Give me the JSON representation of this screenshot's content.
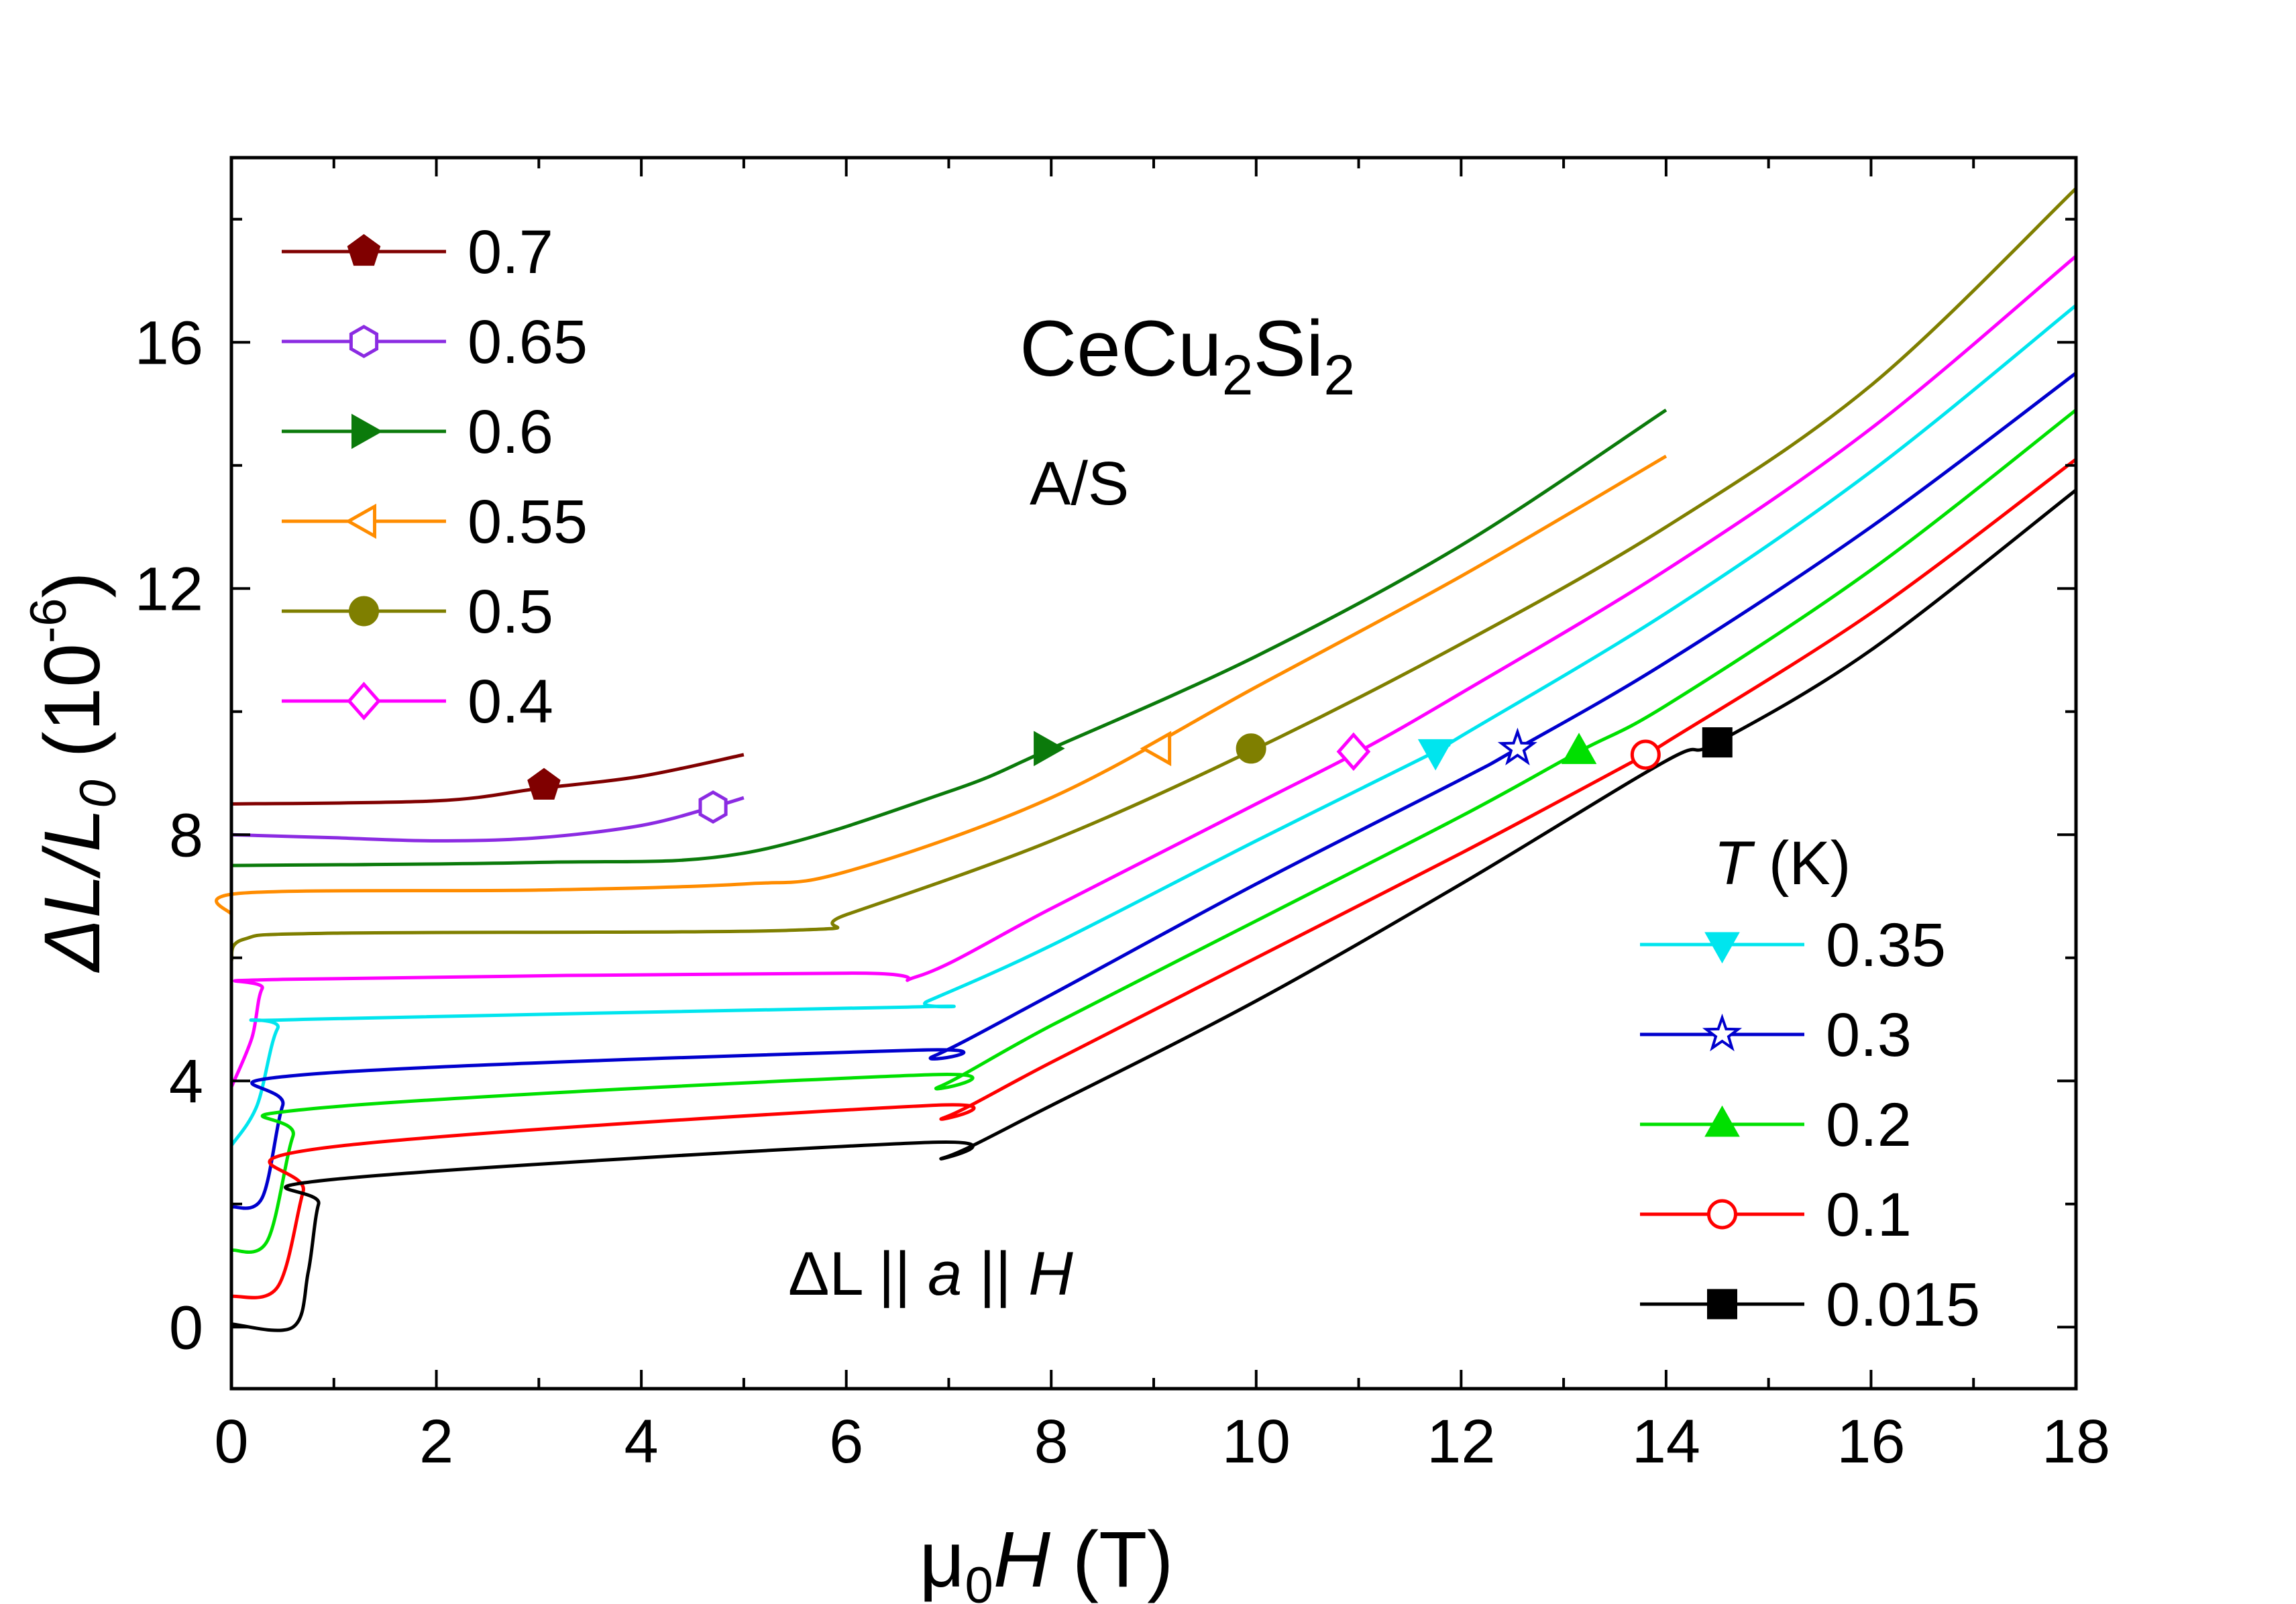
{
  "chart_data": {
    "type": "line",
    "title": "CeCu2Si2",
    "annotations": {
      "compound": {
        "base": "CeCu",
        "sub1": "2",
        "mid": "Si",
        "sub2": "2"
      },
      "sample": "A/S",
      "geometry": {
        "p1": "ΔL",
        "p2": " || ",
        "p3": "a",
        "p4": " || ",
        "p5": "H"
      }
    },
    "xlabel": {
      "prefix": "μ",
      "sub": "0",
      "italic": "H",
      "suffix": " (T)"
    },
    "ylabel": {
      "p1": "ΔL/L",
      "sub": "0",
      "p2": " (10",
      "sup": "-6",
      "p3": ")"
    },
    "xlim": [
      0,
      18
    ],
    "ylim": [
      -1,
      19
    ],
    "xticks": [
      0,
      2,
      4,
      6,
      8,
      10,
      12,
      14,
      16,
      18
    ],
    "yticks": [
      0,
      4,
      8,
      12,
      16
    ],
    "legend_title": {
      "italic": "T",
      "suffix": " (K)"
    },
    "series": [
      {
        "name": "0.7",
        "color": "#800000",
        "marker": "pentagon",
        "filled": true,
        "legend": "upper",
        "points": [
          [
            0,
            8.5
          ],
          [
            2,
            8.55
          ],
          [
            3,
            8.75
          ],
          [
            4,
            8.95
          ],
          [
            5,
            9.3
          ]
        ],
        "marker_at": [
          3.05,
          8.8
        ]
      },
      {
        "name": "0.65",
        "color": "#8B2BE2",
        "marker": "hexagon",
        "filled": false,
        "legend": "upper",
        "points": [
          [
            0,
            8.0
          ],
          [
            1,
            7.95
          ],
          [
            2,
            7.9
          ],
          [
            3,
            7.95
          ],
          [
            4,
            8.15
          ],
          [
            4.7,
            8.45
          ],
          [
            5,
            8.6
          ]
        ],
        "marker_at": [
          4.7,
          8.45
        ]
      },
      {
        "name": "0.6",
        "color": "#0B7A0B",
        "marker": "triangle-right",
        "filled": true,
        "legend": "upper",
        "points": [
          [
            0,
            7.5
          ],
          [
            3,
            7.55
          ],
          [
            5,
            7.7
          ],
          [
            7,
            8.7
          ],
          [
            8,
            9.4
          ],
          [
            10,
            10.9
          ],
          [
            12,
            12.7
          ],
          [
            14,
            14.9
          ]
        ],
        "marker_at": [
          7.95,
          9.4
        ]
      },
      {
        "name": "0.55",
        "color": "#FF8C00",
        "marker": "triangle-left",
        "filled": false,
        "legend": "upper",
        "points": [
          [
            0,
            6.7
          ],
          [
            0.1,
            7.05
          ],
          [
            3,
            7.1
          ],
          [
            5,
            7.2
          ],
          [
            6,
            7.4
          ],
          [
            8,
            8.6
          ],
          [
            10,
            10.4
          ],
          [
            12,
            12.2
          ],
          [
            14,
            14.15
          ]
        ],
        "marker_at": [
          9.05,
          9.4
        ]
      },
      {
        "name": "0.5",
        "color": "#7F7F00",
        "marker": "circle",
        "filled": true,
        "legend": "upper",
        "points": [
          [
            0,
            5.95
          ],
          [
            0.12,
            6.3
          ],
          [
            1,
            6.4
          ],
          [
            5.5,
            6.45
          ],
          [
            6,
            6.7
          ],
          [
            8,
            7.9
          ],
          [
            10,
            9.4
          ],
          [
            12,
            11.1
          ],
          [
            14,
            13.0
          ],
          [
            16,
            15.3
          ],
          [
            18,
            18.5
          ]
        ],
        "marker_at": [
          9.95,
          9.4
        ]
      },
      {
        "name": "0.4",
        "color": "#FF00FF",
        "marker": "diamond",
        "filled": false,
        "legend": "upper",
        "points": [
          [
            0,
            3.9
          ],
          [
            0.2,
            4.7
          ],
          [
            0.3,
            5.5
          ],
          [
            0.5,
            5.65
          ],
          [
            6,
            5.75
          ],
          [
            6.7,
            5.7
          ],
          [
            8,
            6.8
          ],
          [
            10,
            8.5
          ],
          [
            11,
            9.35
          ],
          [
            12,
            10.3
          ],
          [
            14,
            12.3
          ],
          [
            16,
            14.6
          ],
          [
            18,
            17.4
          ]
        ],
        "marker_at": [
          10.95,
          9.35
        ]
      },
      {
        "name": "0.35",
        "color": "#00E5EE",
        "marker": "triangle-down",
        "filled": true,
        "legend": "lower",
        "points": [
          [
            0,
            2.95
          ],
          [
            0.25,
            3.6
          ],
          [
            0.45,
            4.85
          ],
          [
            0.7,
            5.0
          ],
          [
            6.6,
            5.2
          ],
          [
            6.8,
            5.3
          ],
          [
            8,
            6.2
          ],
          [
            10,
            7.9
          ],
          [
            11.75,
            9.35
          ],
          [
            12,
            9.6
          ],
          [
            14,
            11.6
          ],
          [
            16,
            13.9
          ],
          [
            18,
            16.6
          ]
        ],
        "marker_at": [
          11.75,
          9.35
        ]
      },
      {
        "name": "0.3",
        "color": "#0000CD",
        "marker": "star",
        "filled": false,
        "legend": "lower",
        "points": [
          [
            0,
            1.95
          ],
          [
            0.3,
            2.1
          ],
          [
            0.5,
            3.6
          ],
          [
            0.7,
            4.1
          ],
          [
            6.7,
            4.5
          ],
          [
            6.85,
            4.4
          ],
          [
            8,
            5.4
          ],
          [
            10,
            7.2
          ],
          [
            12,
            8.9
          ],
          [
            12.55,
            9.4
          ],
          [
            14,
            10.8
          ],
          [
            16,
            13.0
          ],
          [
            18,
            15.5
          ]
        ],
        "marker_at": [
          12.55,
          9.4
        ]
      },
      {
        "name": "0.2",
        "color": "#00E000",
        "marker": "triangle-up",
        "filled": true,
        "legend": "lower",
        "points": [
          [
            0,
            1.25
          ],
          [
            0.35,
            1.4
          ],
          [
            0.6,
            3.1
          ],
          [
            0.8,
            3.55
          ],
          [
            6.8,
            4.1
          ],
          [
            6.9,
            3.9
          ],
          [
            8,
            4.9
          ],
          [
            10,
            6.6
          ],
          [
            12,
            8.3
          ],
          [
            13.15,
            9.35
          ],
          [
            14,
            10.1
          ],
          [
            16,
            12.3
          ],
          [
            18,
            14.9
          ]
        ],
        "marker_at": [
          13.15,
          9.35
        ]
      },
      {
        "name": "0.1",
        "color": "#FF0000",
        "marker": "circle",
        "filled": false,
        "legend": "lower",
        "points": [
          [
            0,
            0.5
          ],
          [
            0.45,
            0.65
          ],
          [
            0.7,
            2.2
          ],
          [
            0.85,
            2.9
          ],
          [
            6.8,
            3.6
          ],
          [
            6.95,
            3.4
          ],
          [
            8,
            4.3
          ],
          [
            10,
            6.0
          ],
          [
            12,
            7.7
          ],
          [
            13.8,
            9.3
          ],
          [
            14,
            9.5
          ],
          [
            16,
            11.6
          ],
          [
            18,
            14.1
          ]
        ],
        "marker_at": [
          13.8,
          9.3
        ]
      },
      {
        "name": "0.015",
        "color": "#000000",
        "marker": "square",
        "filled": true,
        "legend": "lower",
        "points": [
          [
            0,
            0.05
          ],
          [
            0.6,
            0.0
          ],
          [
            0.75,
            0.9
          ],
          [
            0.85,
            2.0
          ],
          [
            1.0,
            2.4
          ],
          [
            6.8,
            3.0
          ],
          [
            6.95,
            2.75
          ],
          [
            8,
            3.6
          ],
          [
            10,
            5.3
          ],
          [
            12,
            7.2
          ],
          [
            14,
            9.2
          ],
          [
            14.5,
            9.5
          ],
          [
            16,
            11.0
          ],
          [
            18,
            13.6
          ]
        ],
        "marker_at": [
          14.5,
          9.5
        ]
      }
    ]
  }
}
